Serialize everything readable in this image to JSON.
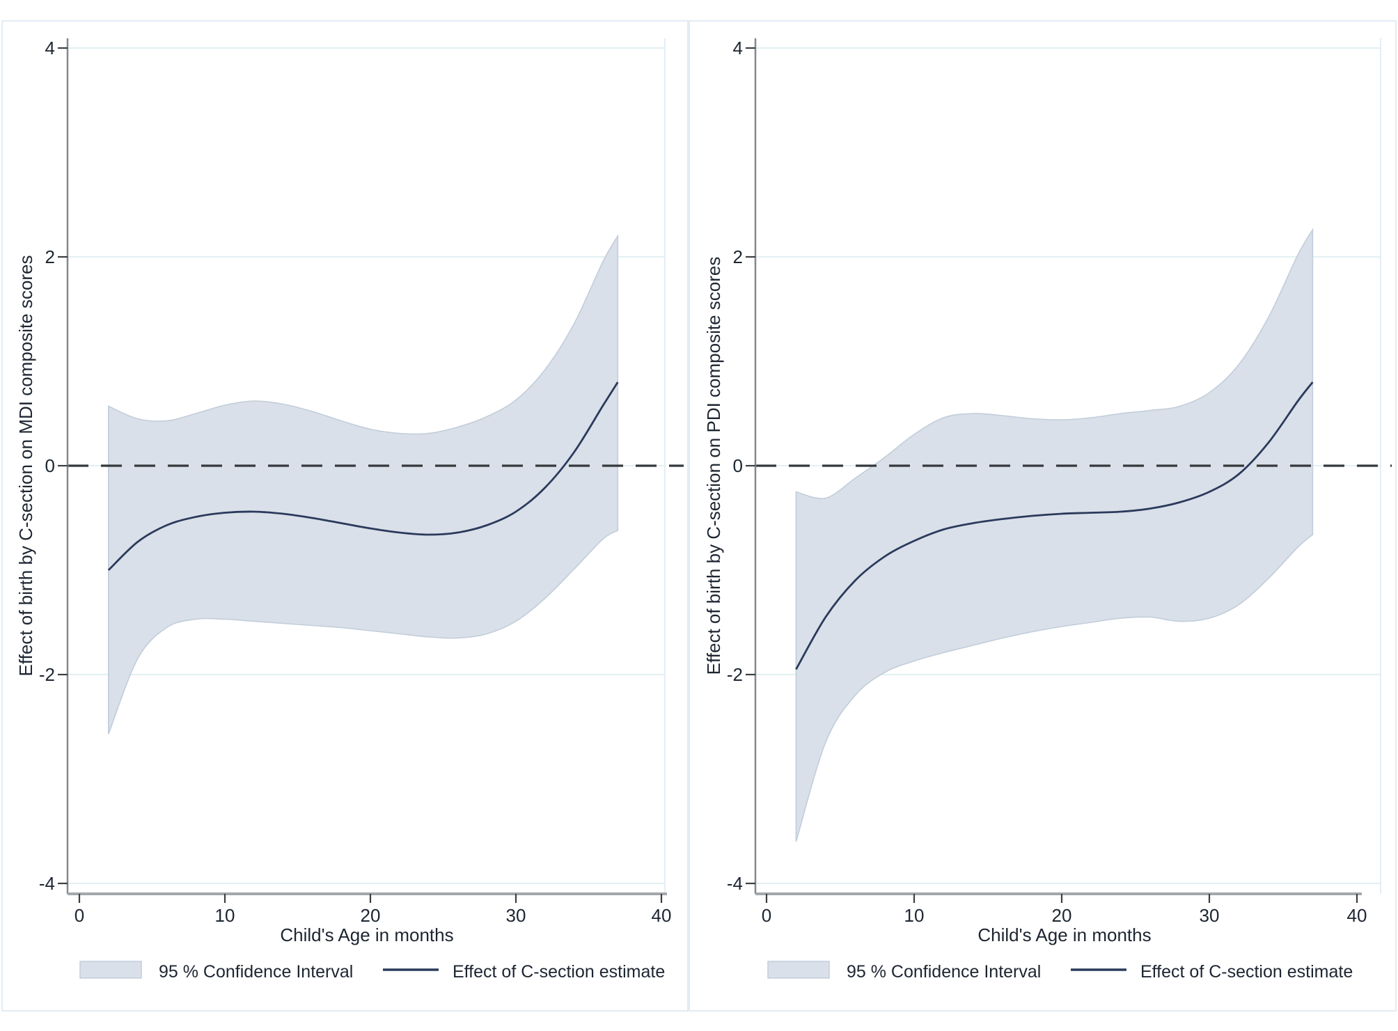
{
  "window": {
    "title": "Effect of birth by C-section on Bayley composite scores — combined figure"
  },
  "colors": {
    "background": "#ffffff",
    "figure_border": "#d9e5ef",
    "plot_edge": "#dce8f0",
    "gridline": "#e2f0f2",
    "ci_band_fill": "#d9e0e9",
    "ci_band_edge": "#c2cdda",
    "estimate_line": "#2b3a5c",
    "zero_dash": "#34383c",
    "x_axis": "#a3a7ab",
    "y_axis": "#85878a",
    "tick_mark": "#3c3e40",
    "text": "#1d2531"
  },
  "chart_data": [
    {
      "type": "area",
      "panel": "left",
      "title": "",
      "ylabel": "Effect of birth by C-section on MDI composite scores",
      "xlabel": "Child's Age in months",
      "xlim": [
        0,
        40
      ],
      "ylim": [
        -4,
        4
      ],
      "x_ticks": [
        0,
        10,
        20,
        30,
        40
      ],
      "y_ticks": [
        4,
        2,
        0,
        -2,
        -4
      ],
      "grid": "on",
      "legend_position": "bottom",
      "reference_line_y": 0,
      "legend": [
        {
          "label": "95 % Confidence Interval",
          "swatch": "area"
        },
        {
          "label": "Effect of C-section estimate",
          "swatch": "line"
        }
      ],
      "x": [
        2,
        4,
        6,
        8,
        10,
        12,
        14,
        16,
        18,
        20,
        22,
        24,
        26,
        28,
        30,
        32,
        34,
        36,
        37
      ],
      "series": [
        {
          "name": "Effect of C-section estimate",
          "role": "estimate",
          "values": [
            -1.0,
            -0.73,
            -0.57,
            -0.49,
            -0.45,
            -0.44,
            -0.46,
            -0.5,
            -0.55,
            -0.6,
            -0.64,
            -0.66,
            -0.64,
            -0.57,
            -0.44,
            -0.21,
            0.13,
            0.58,
            0.8
          ]
        },
        {
          "name": "95 % CI upper bound",
          "role": "ci-upper",
          "values": [
            0.57,
            0.45,
            0.43,
            0.5,
            0.58,
            0.62,
            0.59,
            0.52,
            0.43,
            0.35,
            0.31,
            0.31,
            0.37,
            0.47,
            0.63,
            0.92,
            1.36,
            1.96,
            2.2
          ]
        },
        {
          "name": "95 % CI lower bound",
          "role": "ci-lower",
          "values": [
            -2.57,
            -1.85,
            -1.55,
            -1.47,
            -1.47,
            -1.49,
            -1.51,
            -1.53,
            -1.55,
            -1.58,
            -1.61,
            -1.64,
            -1.65,
            -1.61,
            -1.49,
            -1.27,
            -0.99,
            -0.7,
            -0.62
          ]
        }
      ]
    },
    {
      "type": "area",
      "panel": "right",
      "title": "",
      "ylabel": "Effect of birth by C-section on PDI composite scores",
      "xlabel": "Child's Age in months",
      "xlim": [
        0,
        40
      ],
      "ylim": [
        -4,
        4
      ],
      "x_ticks": [
        0,
        10,
        20,
        30,
        40
      ],
      "y_ticks": [
        4,
        2,
        0,
        -2,
        -4
      ],
      "grid": "on",
      "legend_position": "bottom",
      "reference_line_y": 0,
      "legend": [
        {
          "label": "95 % Confidence Interval",
          "swatch": "area"
        },
        {
          "label": "Effect of C-section estimate",
          "swatch": "line"
        }
      ],
      "x": [
        2,
        4,
        6,
        8,
        10,
        12,
        14,
        16,
        18,
        20,
        22,
        24,
        26,
        28,
        30,
        32,
        34,
        36,
        37
      ],
      "series": [
        {
          "name": "Effect of C-section estimate",
          "role": "estimate",
          "values": [
            -1.95,
            -1.45,
            -1.1,
            -0.87,
            -0.72,
            -0.61,
            -0.55,
            -0.51,
            -0.48,
            -0.46,
            -0.45,
            -0.44,
            -0.41,
            -0.35,
            -0.25,
            -0.08,
            0.22,
            0.62,
            0.8
          ]
        },
        {
          "name": "95 % CI upper bound",
          "role": "ci-upper",
          "values": [
            -0.25,
            -0.31,
            -0.12,
            0.08,
            0.3,
            0.46,
            0.5,
            0.48,
            0.45,
            0.44,
            0.46,
            0.5,
            0.53,
            0.57,
            0.7,
            0.97,
            1.42,
            2.02,
            2.26
          ]
        },
        {
          "name": "95 % CI lower bound",
          "role": "ci-lower",
          "values": [
            -3.6,
            -2.65,
            -2.2,
            -1.98,
            -1.87,
            -1.79,
            -1.72,
            -1.65,
            -1.59,
            -1.54,
            -1.5,
            -1.46,
            -1.45,
            -1.49,
            -1.46,
            -1.33,
            -1.08,
            -0.78,
            -0.66
          ]
        }
      ]
    }
  ]
}
